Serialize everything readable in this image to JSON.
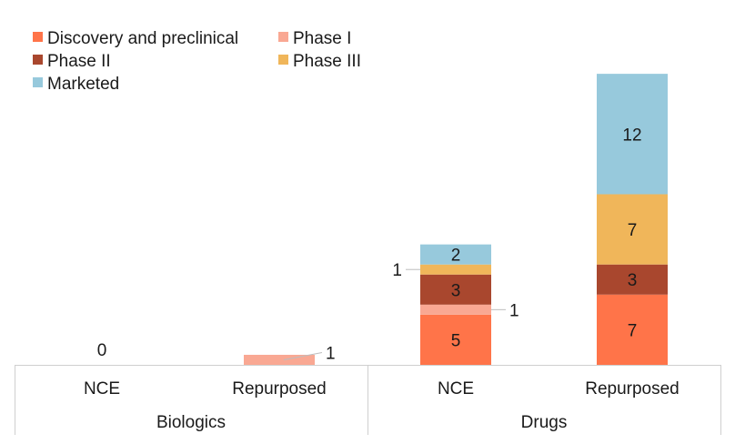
{
  "chart_data": {
    "type": "bar",
    "stacked": true,
    "groups": [
      {
        "name": "Biologics",
        "categories": [
          "NCE",
          "Repurposed"
        ]
      },
      {
        "name": "Drugs",
        "categories": [
          "NCE",
          "Repurposed"
        ]
      }
    ],
    "categories": [
      "NCE",
      "Repurposed",
      "NCE",
      "Repurposed"
    ],
    "series": [
      {
        "name": "Discovery and preclinical",
        "color": "#ff7449",
        "values": [
          0,
          0,
          5,
          7
        ]
      },
      {
        "name": "Phase I",
        "color": "#f9a893",
        "values": [
          0,
          1,
          1,
          0
        ]
      },
      {
        "name": "Phase II",
        "color": "#a9472e",
        "values": [
          0,
          0,
          3,
          3
        ]
      },
      {
        "name": "Phase III",
        "color": "#f0b65a",
        "values": [
          0,
          0,
          1,
          7
        ]
      },
      {
        "name": "Marketed",
        "color": "#97c9dc",
        "values": [
          0,
          0,
          2,
          12
        ]
      }
    ],
    "totals": [
      0,
      1,
      12,
      29
    ],
    "legend_position": "top-left",
    "grid": false,
    "ylim": [
      0,
      30
    ]
  }
}
